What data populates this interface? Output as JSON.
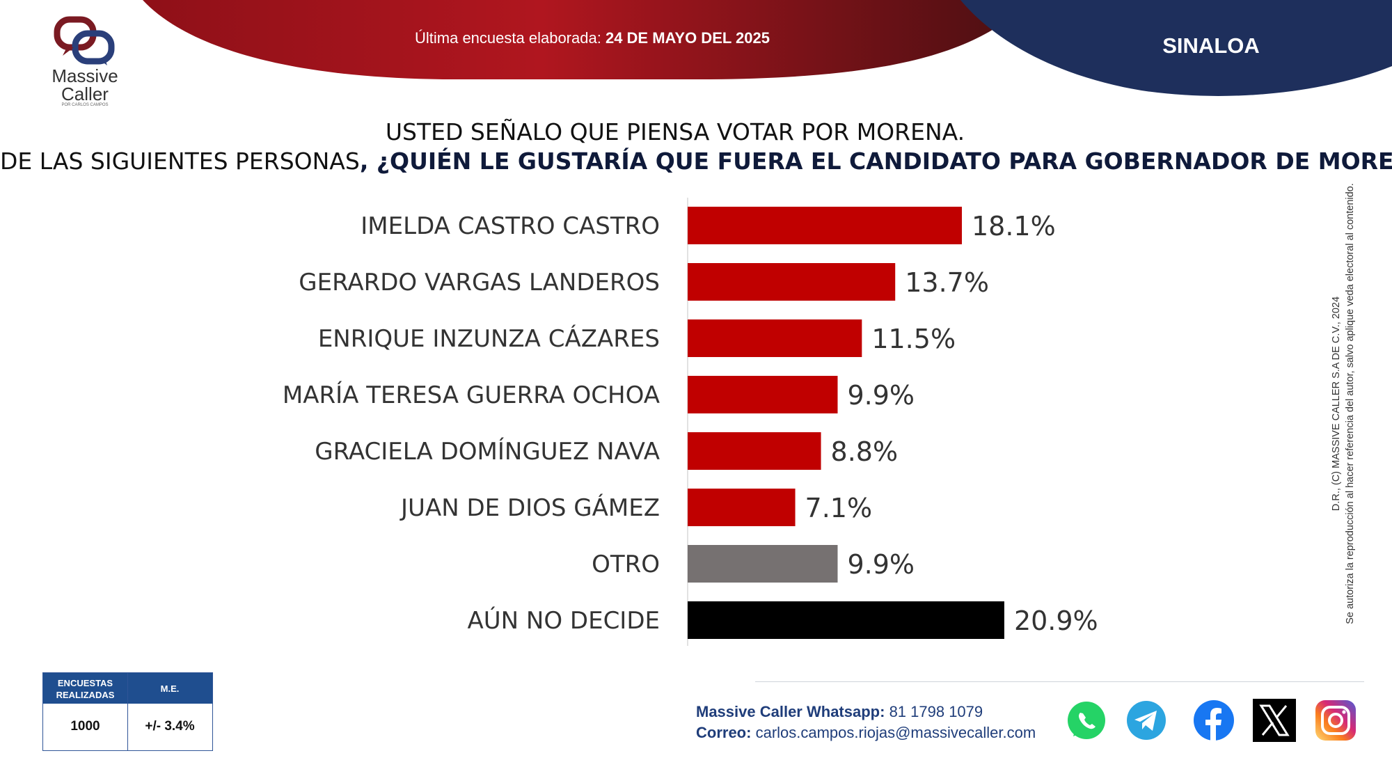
{
  "header": {
    "date_prefix": "Última encuesta elaborada:",
    "date_value": "24 DE MAYO DEL 2025",
    "region": "SINALOA"
  },
  "logo": {
    "name_line1": "Massive",
    "name_line2": "Caller",
    "tagline": "POR CARLOS CAMPOS"
  },
  "question": {
    "line1": "USTED SEÑALO QUE PIENSA VOTAR POR MORENA.",
    "line2_plain": "DE LAS SIGUIENTES PERSONAS",
    "line2_bold": ", ¿QUIÉN LE GUSTARÍA QUE FUERA EL CANDIDATO PARA GOBERNADOR DE MORENA?"
  },
  "chart_data": {
    "type": "bar",
    "orientation": "horizontal",
    "categories": [
      "IMELDA CASTRO CASTRO",
      "GERARDO VARGAS LANDEROS",
      "ENRIQUE INZUNZA CÁZARES",
      "MARÍA TERESA GUERRA OCHOA",
      "GRACIELA DOMÍNGUEZ NAVA",
      "JUAN DE DIOS GÁMEZ",
      "OTRO",
      "AÚN NO DECIDE"
    ],
    "values": [
      18.1,
      13.7,
      11.5,
      9.9,
      8.8,
      7.1,
      9.9,
      20.9
    ],
    "value_labels": [
      "18.1%",
      "13.7%",
      "11.5%",
      "9.9%",
      "8.8%",
      "7.1%",
      "9.9%",
      "20.9%"
    ],
    "unit": "%",
    "colors": [
      "#c00000",
      "#c00000",
      "#c00000",
      "#c00000",
      "#c00000",
      "#c00000",
      "#767171",
      "#000000"
    ],
    "grid": false
  },
  "side_note": {
    "line1": "D.R., (C) MASSIVE CALLER S.A DE C.V., 2024",
    "line2": "Se autoriza la reproducción al hacer referencia del autor, salvo aplique veda electoral al contenido."
  },
  "stats_table": {
    "col1_header": "ENCUESTAS REALIZADAS",
    "col1_value": "1000",
    "col2_header": "M.E.",
    "col2_value": "+/- 3.4%"
  },
  "contact": {
    "whatsapp_label": "Massive Caller Whatsapp:",
    "whatsapp_value": "81 1798 1079",
    "email_label": "Correo:",
    "email_value": "carlos.campos.riojas@massivecaller.com"
  },
  "social_icons": [
    "whatsapp-icon",
    "telegram-icon",
    "facebook-icon",
    "x-icon",
    "instagram-icon"
  ],
  "colors": {
    "header_red": "#a8141c",
    "header_navy": "#1e2f5c",
    "bar_red": "#c00000",
    "bar_gray": "#767171",
    "bar_black": "#000000",
    "table_blue": "#1f4e8f"
  }
}
